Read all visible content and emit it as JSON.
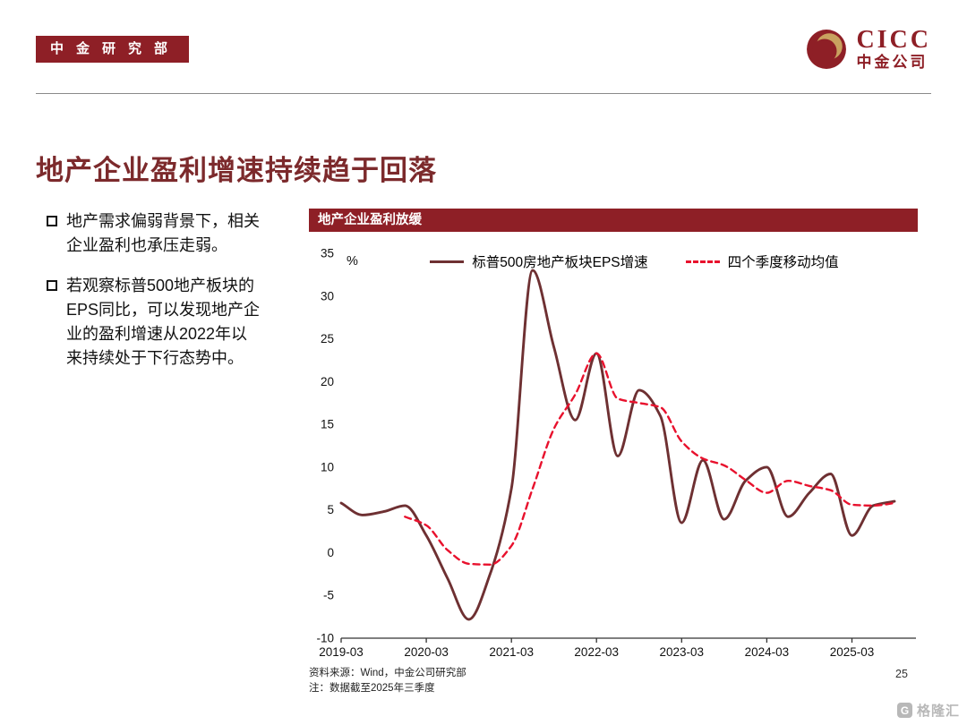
{
  "header": {
    "badge_label": "中金研究部",
    "logo": {
      "brand": "CICC",
      "brand_cn": "中金公司"
    }
  },
  "slide": {
    "title": "地产企业盈利增速持续趋于回落",
    "bullets": [
      "地产需求偏弱背景下，相关企业盈利也承压走弱。",
      "若观察标普500地产板块的EPS同比，可以发现地产企业的盈利增速从2022年以来持续处于下行态势中。"
    ],
    "page_number": "25"
  },
  "chart_data": {
    "type": "line",
    "title": "地产企业盈利放缓",
    "unit_label": "%",
    "grid": false,
    "legend_position": "top",
    "ylim": [
      -10,
      35
    ],
    "yticks": [
      -10,
      -5,
      0,
      5,
      10,
      15,
      20,
      25,
      30,
      35
    ],
    "xtick_labels": [
      "2019-03",
      "2020-03",
      "2021-03",
      "2022-03",
      "2023-03",
      "2024-03",
      "2025-03"
    ],
    "xtick_positions_quarters": [
      0,
      4,
      8,
      12,
      16,
      20,
      24
    ],
    "quarters": [
      "2019-03",
      "2019-06",
      "2019-09",
      "2019-12",
      "2020-03",
      "2020-06",
      "2020-09",
      "2020-12",
      "2021-03",
      "2021-06",
      "2021-09",
      "2021-12",
      "2022-03",
      "2022-06",
      "2022-09",
      "2022-12",
      "2023-03",
      "2023-06",
      "2023-09",
      "2023-12",
      "2024-03",
      "2024-06",
      "2024-09",
      "2024-12",
      "2025-03",
      "2025-06",
      "2025-09"
    ],
    "series": [
      {
        "name": "标普500房地产板块EPS增速",
        "line_style": "solid",
        "color": "#6E3032",
        "values": [
          5.8,
          4.4,
          4.8,
          5.5,
          2.0,
          -3.0,
          -7.8,
          -2.5,
          7.5,
          33.0,
          24.0,
          15.5,
          23.3,
          11.3,
          19.0,
          16.0,
          3.5,
          10.8,
          3.9,
          8.4,
          10.0,
          4.2,
          7.0,
          9.2,
          2.0,
          5.5,
          6.0
        ]
      },
      {
        "name": "四个季度移动均值",
        "line_style": "dashed",
        "color": "#E8112D",
        "values": [
          null,
          null,
          null,
          4.2,
          3.2,
          0.3,
          -1.3,
          -1.4,
          0.8,
          7.5,
          14.5,
          18.5,
          23.3,
          18.0,
          17.5,
          17.0,
          13.0,
          11.0,
          10.2,
          8.5,
          7.0,
          8.4,
          7.8,
          7.3,
          5.6,
          5.5,
          5.8
        ]
      }
    ]
  },
  "footnotes": [
    "资料来源：Wind，中金公司研究部",
    "注：数据截至2025年三季度"
  ],
  "watermark": "格隆汇"
}
